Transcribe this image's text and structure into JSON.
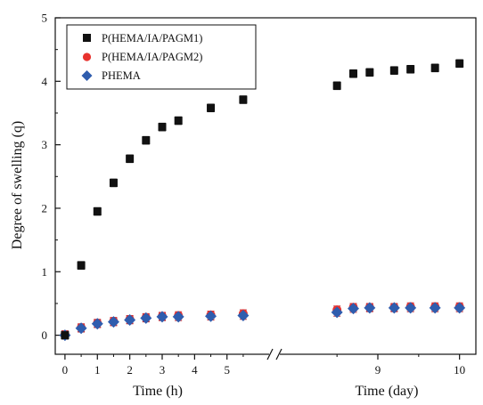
{
  "chart_data": {
    "type": "scatter",
    "title": "",
    "ylabel": "Degree of swelling (q)",
    "ylim": [
      -0.3,
      5
    ],
    "yticks": [
      "0",
      "1",
      "2",
      "3",
      "4",
      "5"
    ],
    "legend_position": "top-left",
    "broken_x_axis": true,
    "panels": [
      {
        "xlabel": "Time (h)",
        "xlim": [
          -0.3,
          6.3
        ],
        "xticks": [
          "0",
          "1",
          "2",
          "3",
          "4",
          "5"
        ]
      },
      {
        "xlabel": "Time (day)",
        "xlim": [
          7.8,
          10.2
        ],
        "xticks": [
          "9",
          "10"
        ]
      }
    ],
    "series": [
      {
        "name": "P(HEMA/IA/PAGM1)",
        "marker": "square",
        "color": "#111111",
        "points": [
          {
            "panel": 0,
            "x": 0,
            "y": 0.0
          },
          {
            "panel": 0,
            "x": 0.5,
            "y": 1.1
          },
          {
            "panel": 0,
            "x": 1,
            "y": 1.95
          },
          {
            "panel": 0,
            "x": 1.5,
            "y": 2.4
          },
          {
            "panel": 0,
            "x": 2,
            "y": 2.78
          },
          {
            "panel": 0,
            "x": 2.5,
            "y": 3.07
          },
          {
            "panel": 0,
            "x": 3,
            "y": 3.28
          },
          {
            "panel": 0,
            "x": 3.5,
            "y": 3.38
          },
          {
            "panel": 0,
            "x": 4.5,
            "y": 3.58
          },
          {
            "panel": 0,
            "x": 5.5,
            "y": 3.71
          },
          {
            "panel": 1,
            "x": 8.5,
            "y": 3.93
          },
          {
            "panel": 1,
            "x": 8.7,
            "y": 4.12
          },
          {
            "panel": 1,
            "x": 8.9,
            "y": 4.14
          },
          {
            "panel": 1,
            "x": 9.2,
            "y": 4.17
          },
          {
            "panel": 1,
            "x": 9.4,
            "y": 4.19
          },
          {
            "panel": 1,
            "x": 9.7,
            "y": 4.21
          },
          {
            "panel": 1,
            "x": 10,
            "y": 4.28
          }
        ]
      },
      {
        "name": "P(HEMA/IA/PAGM2)",
        "marker": "circle",
        "color": "#e8322e",
        "points": [
          {
            "panel": 0,
            "x": 0,
            "y": 0.01
          },
          {
            "panel": 0,
            "x": 0.5,
            "y": 0.12
          },
          {
            "panel": 0,
            "x": 1,
            "y": 0.19
          },
          {
            "panel": 0,
            "x": 1.5,
            "y": 0.22
          },
          {
            "panel": 0,
            "x": 2,
            "y": 0.25
          },
          {
            "panel": 0,
            "x": 2.5,
            "y": 0.28
          },
          {
            "panel": 0,
            "x": 3,
            "y": 0.3
          },
          {
            "panel": 0,
            "x": 3.5,
            "y": 0.31
          },
          {
            "panel": 0,
            "x": 4.5,
            "y": 0.32
          },
          {
            "panel": 0,
            "x": 5.5,
            "y": 0.34
          },
          {
            "panel": 1,
            "x": 8.5,
            "y": 0.4
          },
          {
            "panel": 1,
            "x": 8.7,
            "y": 0.44
          },
          {
            "panel": 1,
            "x": 8.9,
            "y": 0.44
          },
          {
            "panel": 1,
            "x": 9.2,
            "y": 0.44
          },
          {
            "panel": 1,
            "x": 9.4,
            "y": 0.45
          },
          {
            "panel": 1,
            "x": 9.7,
            "y": 0.45
          },
          {
            "panel": 1,
            "x": 10,
            "y": 0.45
          }
        ]
      },
      {
        "name": "PHEMA",
        "marker": "diamond",
        "color": "#2f5dae",
        "points": [
          {
            "panel": 0,
            "x": 0,
            "y": 0.0
          },
          {
            "panel": 0,
            "x": 0.5,
            "y": 0.11
          },
          {
            "panel": 0,
            "x": 1,
            "y": 0.18
          },
          {
            "panel": 0,
            "x": 1.5,
            "y": 0.21
          },
          {
            "panel": 0,
            "x": 2,
            "y": 0.24
          },
          {
            "panel": 0,
            "x": 2.5,
            "y": 0.27
          },
          {
            "panel": 0,
            "x": 3,
            "y": 0.29
          },
          {
            "panel": 0,
            "x": 3.5,
            "y": 0.29
          },
          {
            "panel": 0,
            "x": 4.5,
            "y": 0.3
          },
          {
            "panel": 0,
            "x": 5.5,
            "y": 0.31
          },
          {
            "panel": 1,
            "x": 8.5,
            "y": 0.36
          },
          {
            "panel": 1,
            "x": 8.7,
            "y": 0.42
          },
          {
            "panel": 1,
            "x": 8.9,
            "y": 0.43
          },
          {
            "panel": 1,
            "x": 9.2,
            "y": 0.43
          },
          {
            "panel": 1,
            "x": 9.4,
            "y": 0.43
          },
          {
            "panel": 1,
            "x": 9.7,
            "y": 0.43
          },
          {
            "panel": 1,
            "x": 10,
            "y": 0.43
          }
        ]
      }
    ]
  }
}
